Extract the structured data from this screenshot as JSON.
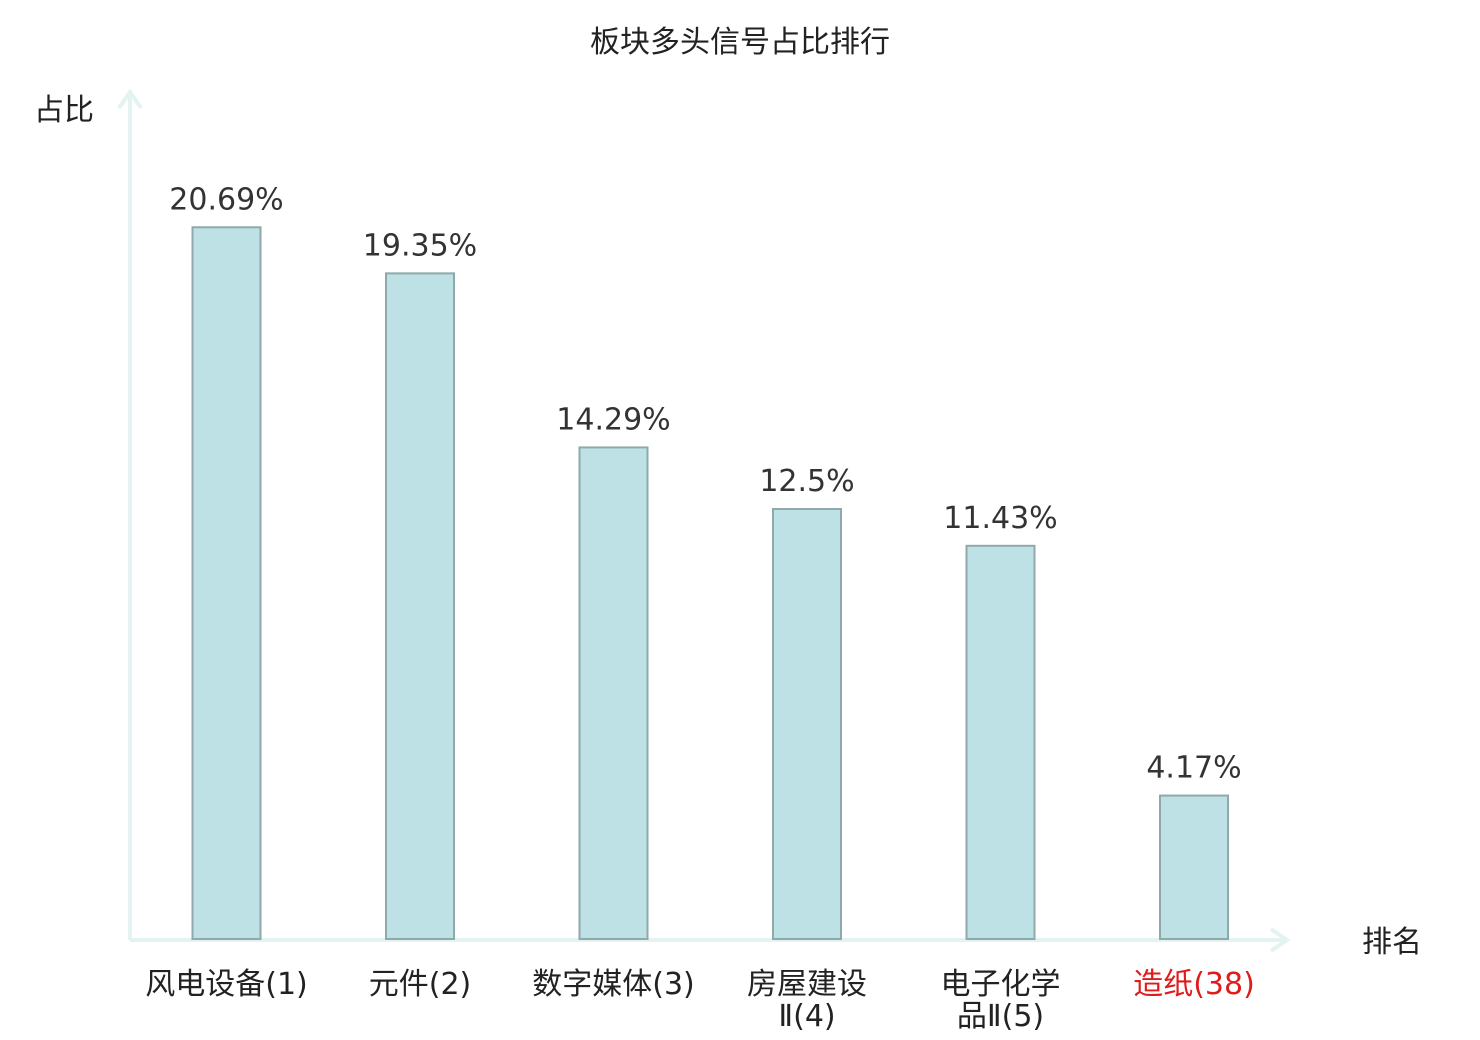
{
  "chart_data": {
    "type": "bar",
    "title": "板块多头信号占比排行",
    "ylabel": "占比",
    "xlabel": "排名",
    "categories": [
      {
        "lines": [
          "风电设备(1)"
        ],
        "highlight": false
      },
      {
        "lines": [
          "元件(2)"
        ],
        "highlight": false
      },
      {
        "lines": [
          "数字媒体(3)"
        ],
        "highlight": false
      },
      {
        "lines": [
          "房屋建设",
          "Ⅱ(4)"
        ],
        "highlight": false
      },
      {
        "lines": [
          "电子化学",
          "品Ⅱ(5)"
        ],
        "highlight": false
      },
      {
        "lines": [
          "造纸(38)"
        ],
        "highlight": true
      }
    ],
    "values": [
      20.69,
      19.35,
      14.29,
      12.5,
      11.43,
      4.17
    ],
    "value_labels": [
      "20.69%",
      "19.35%",
      "14.29%",
      "12.5%",
      "11.43%",
      "4.17%"
    ],
    "ylim": [
      0,
      25
    ],
    "grid": false,
    "colors": {
      "bar_fill": "#bde1e4",
      "bar_stroke": "#8fa9ab",
      "axis": "#e3f3f1",
      "highlight_text": "#e01b1b"
    }
  }
}
